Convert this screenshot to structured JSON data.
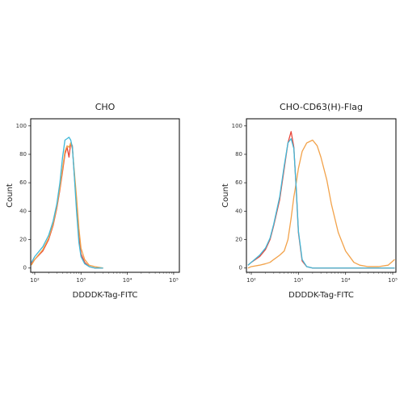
{
  "chart_data": [
    {
      "type": "line",
      "title": "CHO",
      "x_label": "DDDDK-Tag-FITC",
      "y_label": "Count",
      "log_x": true,
      "xlim": [
        82,
        133000
      ],
      "ylim": [
        -3,
        105
      ],
      "xticks": [
        {
          "value": 100,
          "label": "10²"
        },
        {
          "value": 1000,
          "label": "10³"
        },
        {
          "value": 10000,
          "label": "10⁴"
        },
        {
          "value": 100000,
          "label": "10⁵"
        }
      ],
      "yticks": [
        0,
        20,
        40,
        60,
        80,
        100
      ],
      "x": [
        85,
        100,
        150,
        200,
        250,
        300,
        350,
        400,
        450,
        500,
        550,
        600,
        650,
        700,
        800,
        900,
        1000,
        1200,
        1500,
        2000,
        3000
      ],
      "series": [
        {
          "color": "#e8463a",
          "values": [
            3,
            6,
            12,
            20,
            30,
            42,
            55,
            68,
            80,
            85,
            78,
            88,
            86,
            70,
            45,
            22,
            10,
            4,
            1,
            0,
            0
          ]
        },
        {
          "color": "#f2a24a",
          "values": [
            2,
            6,
            13,
            21,
            31,
            43,
            56,
            70,
            82,
            86,
            85,
            88,
            84,
            72,
            50,
            28,
            14,
            6,
            2,
            1,
            0
          ]
        },
        {
          "color": "#3fb8d8",
          "values": [
            4,
            8,
            15,
            23,
            33,
            45,
            60,
            78,
            90,
            91,
            92,
            90,
            85,
            70,
            40,
            18,
            8,
            3,
            1,
            0,
            0
          ]
        }
      ]
    },
    {
      "type": "line",
      "title": "CHO-CD63(H)-Flag",
      "x_label": "DDDDK-Tag-FITC",
      "y_label": "Count",
      "log_x": true,
      "xlim": [
        79,
        117000
      ],
      "ylim": [
        -3,
        105
      ],
      "xticks": [
        {
          "value": 100,
          "label": "10²"
        },
        {
          "value": 1000,
          "label": "10³"
        },
        {
          "value": 10000,
          "label": "10⁴"
        },
        {
          "value": 100000,
          "label": "10⁵"
        }
      ],
      "yticks": [
        0,
        20,
        40,
        60,
        80,
        100
      ],
      "x": [
        85,
        100,
        150,
        200,
        250,
        300,
        400,
        500,
        600,
        700,
        800,
        900,
        1000,
        1200,
        1500,
        2000,
        2500,
        3000,
        4000,
        5000,
        7000,
        10000,
        15000,
        20000,
        30000,
        50000,
        80000,
        110000
      ],
      "series": [
        {
          "color": "#f2a24a",
          "values": [
            0,
            1,
            2,
            3,
            4,
            6,
            9,
            12,
            20,
            35,
            50,
            60,
            70,
            82,
            88,
            90,
            86,
            78,
            62,
            45,
            25,
            12,
            4,
            2,
            1,
            1,
            2,
            6
          ]
        },
        {
          "color": "#e8463a",
          "values": [
            2,
            4,
            8,
            13,
            20,
            30,
            48,
            70,
            88,
            96,
            85,
            55,
            25,
            5,
            1,
            0,
            0,
            0,
            0,
            0,
            0,
            0,
            0,
            0,
            0,
            0,
            0,
            0
          ]
        },
        {
          "color": "#3fb8d8",
          "values": [
            2,
            4,
            9,
            14,
            21,
            31,
            50,
            72,
            88,
            91,
            84,
            56,
            26,
            6,
            1,
            0,
            0,
            0,
            0,
            0,
            0,
            0,
            0,
            0,
            0,
            0,
            0,
            0
          ]
        }
      ]
    }
  ]
}
